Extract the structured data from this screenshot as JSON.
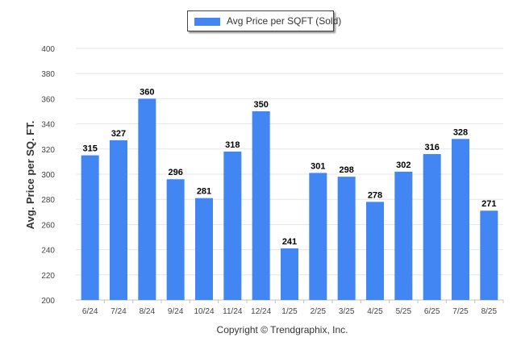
{
  "chart_data": {
    "type": "bar",
    "categories": [
      "6/24",
      "7/24",
      "8/24",
      "9/24",
      "10/24",
      "11/24",
      "12/24",
      "1/25",
      "2/25",
      "3/25",
      "4/25",
      "5/25",
      "6/25",
      "7/25",
      "8/25"
    ],
    "series": [
      {
        "name": "Avg Price per SQFT (Sold)",
        "values": [
          315,
          327,
          360,
          296,
          281,
          318,
          350,
          241,
          301,
          298,
          278,
          302,
          316,
          328,
          271
        ]
      }
    ],
    "ylabel": "Avg. Price per SQ. FT.",
    "xlabel": "",
    "ylim": [
      200,
      400
    ],
    "yticks": [
      200,
      220,
      240,
      260,
      280,
      300,
      320,
      340,
      360,
      380,
      400
    ],
    "grid": true,
    "legend_position": "top-center",
    "bar_color": "#4286f4"
  },
  "footer": {
    "copyright": "Copyright © Trendgraphix, Inc."
  }
}
